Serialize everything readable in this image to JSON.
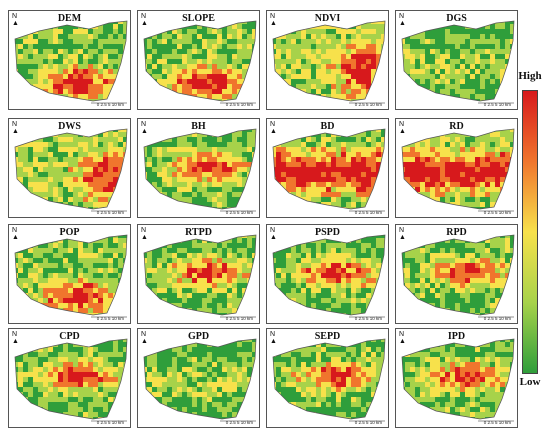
{
  "panels": [
    {
      "title": "DEM",
      "pattern": "south-high"
    },
    {
      "title": "SLOPE",
      "pattern": "south-high"
    },
    {
      "title": "NDVI",
      "pattern": "mixed-east"
    },
    {
      "title": "DGS",
      "pattern": "low-green"
    },
    {
      "title": "DWS",
      "pattern": "mixed-east"
    },
    {
      "title": "BH",
      "pattern": "center-band"
    },
    {
      "title": "BD",
      "pattern": "center-strong"
    },
    {
      "title": "RD",
      "pattern": "center-strong"
    },
    {
      "title": "POP",
      "pattern": "south-high"
    },
    {
      "title": "RTPD",
      "pattern": "center-band"
    },
    {
      "title": "PSPD",
      "pattern": "center-band"
    },
    {
      "title": "RPD",
      "pattern": "center-band"
    },
    {
      "title": "CPD",
      "pattern": "center-band"
    },
    {
      "title": "GPD",
      "pattern": "low-green"
    },
    {
      "title": "SEPD",
      "pattern": "center-band"
    },
    {
      "title": "IPD",
      "pattern": "center-band"
    }
  ],
  "north_label": "N",
  "scale_label": "0  2.5  5          10 km",
  "legend": {
    "high": "High",
    "low": "Low",
    "colors": [
      "#d7191c",
      "#f0752d",
      "#f7e14b",
      "#a7d24a",
      "#2f9e3b"
    ]
  }
}
